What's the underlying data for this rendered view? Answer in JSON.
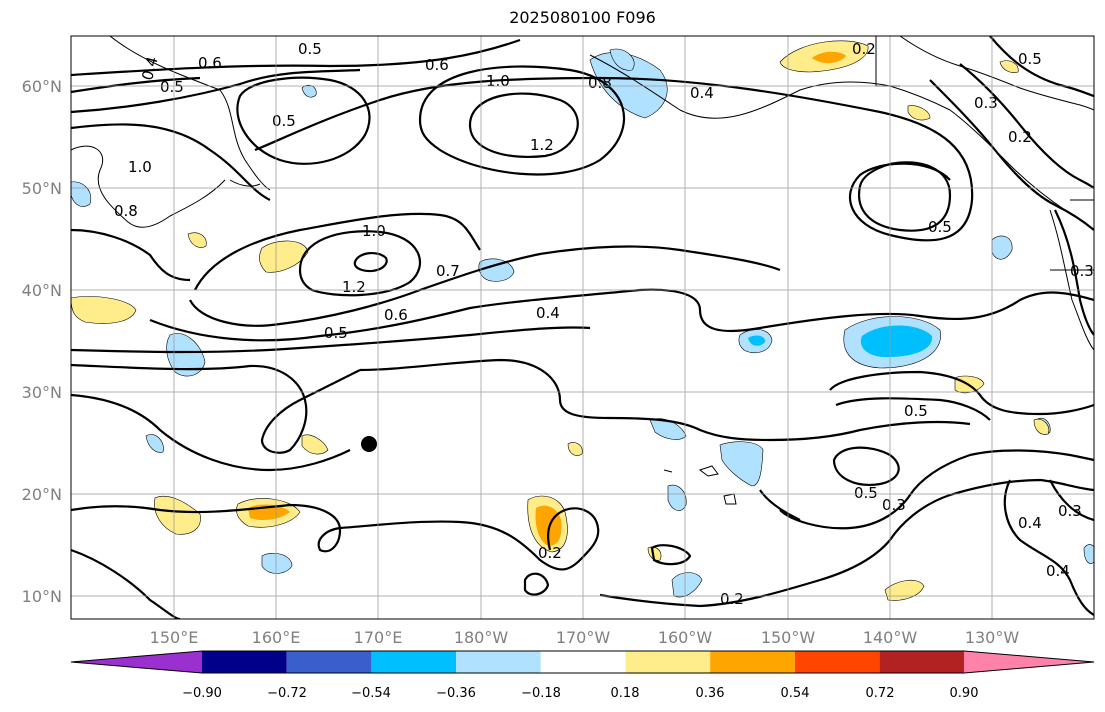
{
  "title": "2025080100 F096",
  "map": {
    "lat_labels": [
      "60°N",
      "50°N",
      "40°N",
      "30°N",
      "20°N",
      "10°N"
    ],
    "lon_labels": [
      "150°E",
      "160°E",
      "170°E",
      "180°W",
      "170°W",
      "160°W",
      "150°W",
      "140°W",
      "130°W"
    ],
    "contour_labels": [
      "0.4",
      "0.6",
      "0.5",
      "0.6",
      "1.0",
      "0.8",
      "0.4",
      "0.2",
      "0.5",
      "0.3",
      "0.2",
      "0.5",
      "0.5",
      "1.2",
      "1.0",
      "0.8",
      "1.0",
      "1.2",
      "0.7",
      "0.6",
      "0.5",
      "0.4",
      "0.5",
      "0.2",
      "0.2",
      "0.5",
      "0.3",
      "0.4",
      "0.3",
      "0.4",
      "0.5",
      "0.3"
    ],
    "marker": "filled-circle"
  },
  "colorbar": {
    "ticks": [
      "−0.90",
      "−0.72",
      "−0.54",
      "−0.36",
      "−0.18",
      "0.18",
      "0.36",
      "0.54",
      "0.72",
      "0.90"
    ],
    "colors": [
      "#9b30d0",
      "#00008b",
      "#3a5fcd",
      "#00bfff",
      "#b0e2ff",
      "#ffffff",
      "#ffec8b",
      "#ffa500",
      "#ff4500",
      "#b22222",
      "#ff82ab"
    ]
  }
}
